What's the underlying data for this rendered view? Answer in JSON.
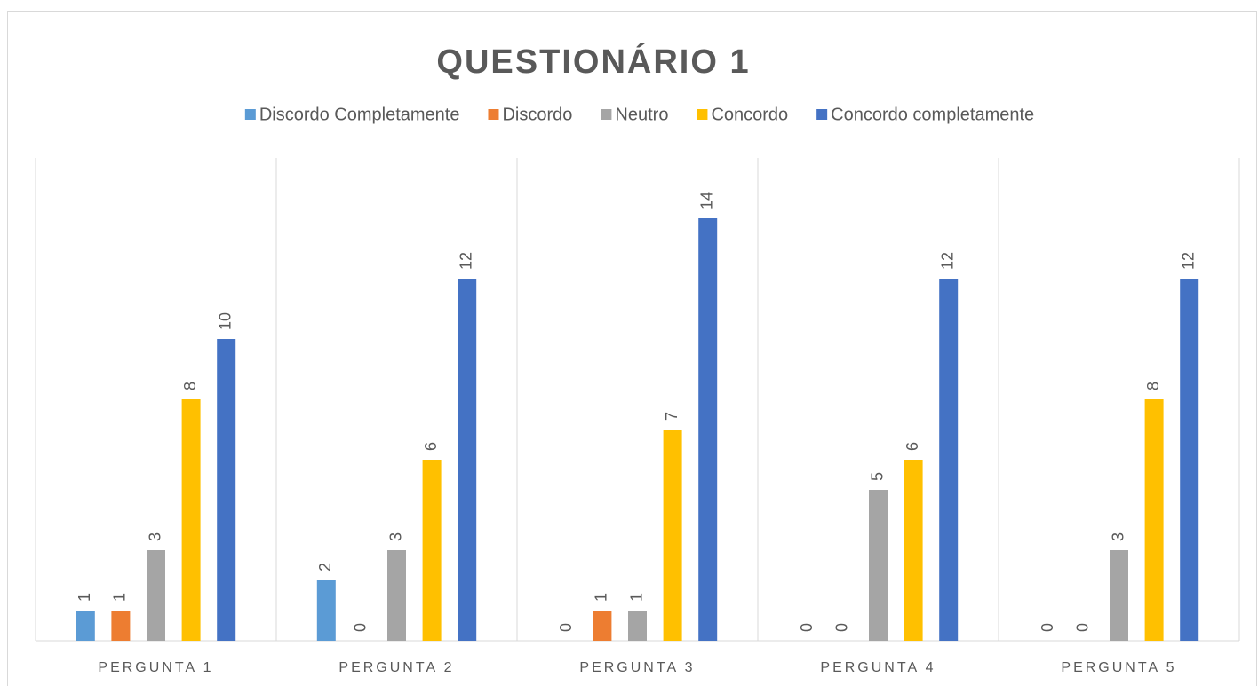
{
  "chart_data": {
    "type": "bar",
    "title": "QUESTIONÁRIO 1",
    "categories": [
      "PERGUNTA 1",
      "PERGUNTA 2",
      "PERGUNTA 3",
      "PERGUNTA 4",
      "PERGUNTA 5"
    ],
    "series": [
      {
        "name": "Discordo Completamente",
        "color": "#5B9BD5",
        "values": [
          1,
          2,
          0,
          0,
          0
        ]
      },
      {
        "name": "Discordo",
        "color": "#ED7D31",
        "values": [
          1,
          0,
          1,
          0,
          0
        ]
      },
      {
        "name": "Neutro",
        "color": "#A5A5A5",
        "values": [
          3,
          3,
          1,
          5,
          3
        ]
      },
      {
        "name": "Concordo",
        "color": "#FFC000",
        "values": [
          8,
          6,
          7,
          6,
          8
        ]
      },
      {
        "name": "Concordo completamente",
        "color": "#4472C4",
        "values": [
          10,
          12,
          14,
          12,
          12
        ]
      }
    ],
    "ylim": [
      0,
      16
    ],
    "legend": "top",
    "data_labels": true
  }
}
